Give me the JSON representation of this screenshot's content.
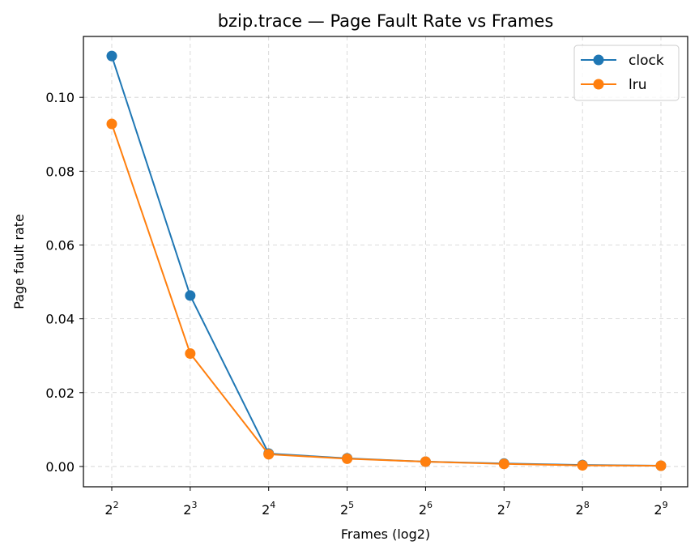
{
  "chart_data": {
    "type": "line",
    "title": "bzip.trace — Page Fault Rate vs Frames",
    "xlabel": "Frames (log2)",
    "ylabel": "Page fault rate",
    "x_scale": "log2",
    "x": [
      4,
      8,
      16,
      32,
      64,
      128,
      256,
      512
    ],
    "x_tick_labels": [
      {
        "base": "2",
        "exp": "2"
      },
      {
        "base": "2",
        "exp": "3"
      },
      {
        "base": "2",
        "exp": "4"
      },
      {
        "base": "2",
        "exp": "5"
      },
      {
        "base": "2",
        "exp": "6"
      },
      {
        "base": "2",
        "exp": "7"
      },
      {
        "base": "2",
        "exp": "8"
      },
      {
        "base": "2",
        "exp": "9"
      }
    ],
    "y_ticks": [
      "0.00",
      "0.02",
      "0.04",
      "0.06",
      "0.08",
      "0.10"
    ],
    "ylim": [
      -0.0055,
      0.1165
    ],
    "grid": true,
    "legend_position": "top-right",
    "series": [
      {
        "name": "clock",
        "color": "#1f77b4",
        "values": [
          0.1112,
          0.0463,
          0.0035,
          0.0022,
          0.0013,
          0.0008,
          0.0004,
          0.0002
        ]
      },
      {
        "name": "lru",
        "color": "#ff7f0e",
        "values": [
          0.0928,
          0.0306,
          0.0033,
          0.0021,
          0.0013,
          0.0007,
          0.0003,
          0.0002
        ]
      }
    ]
  }
}
